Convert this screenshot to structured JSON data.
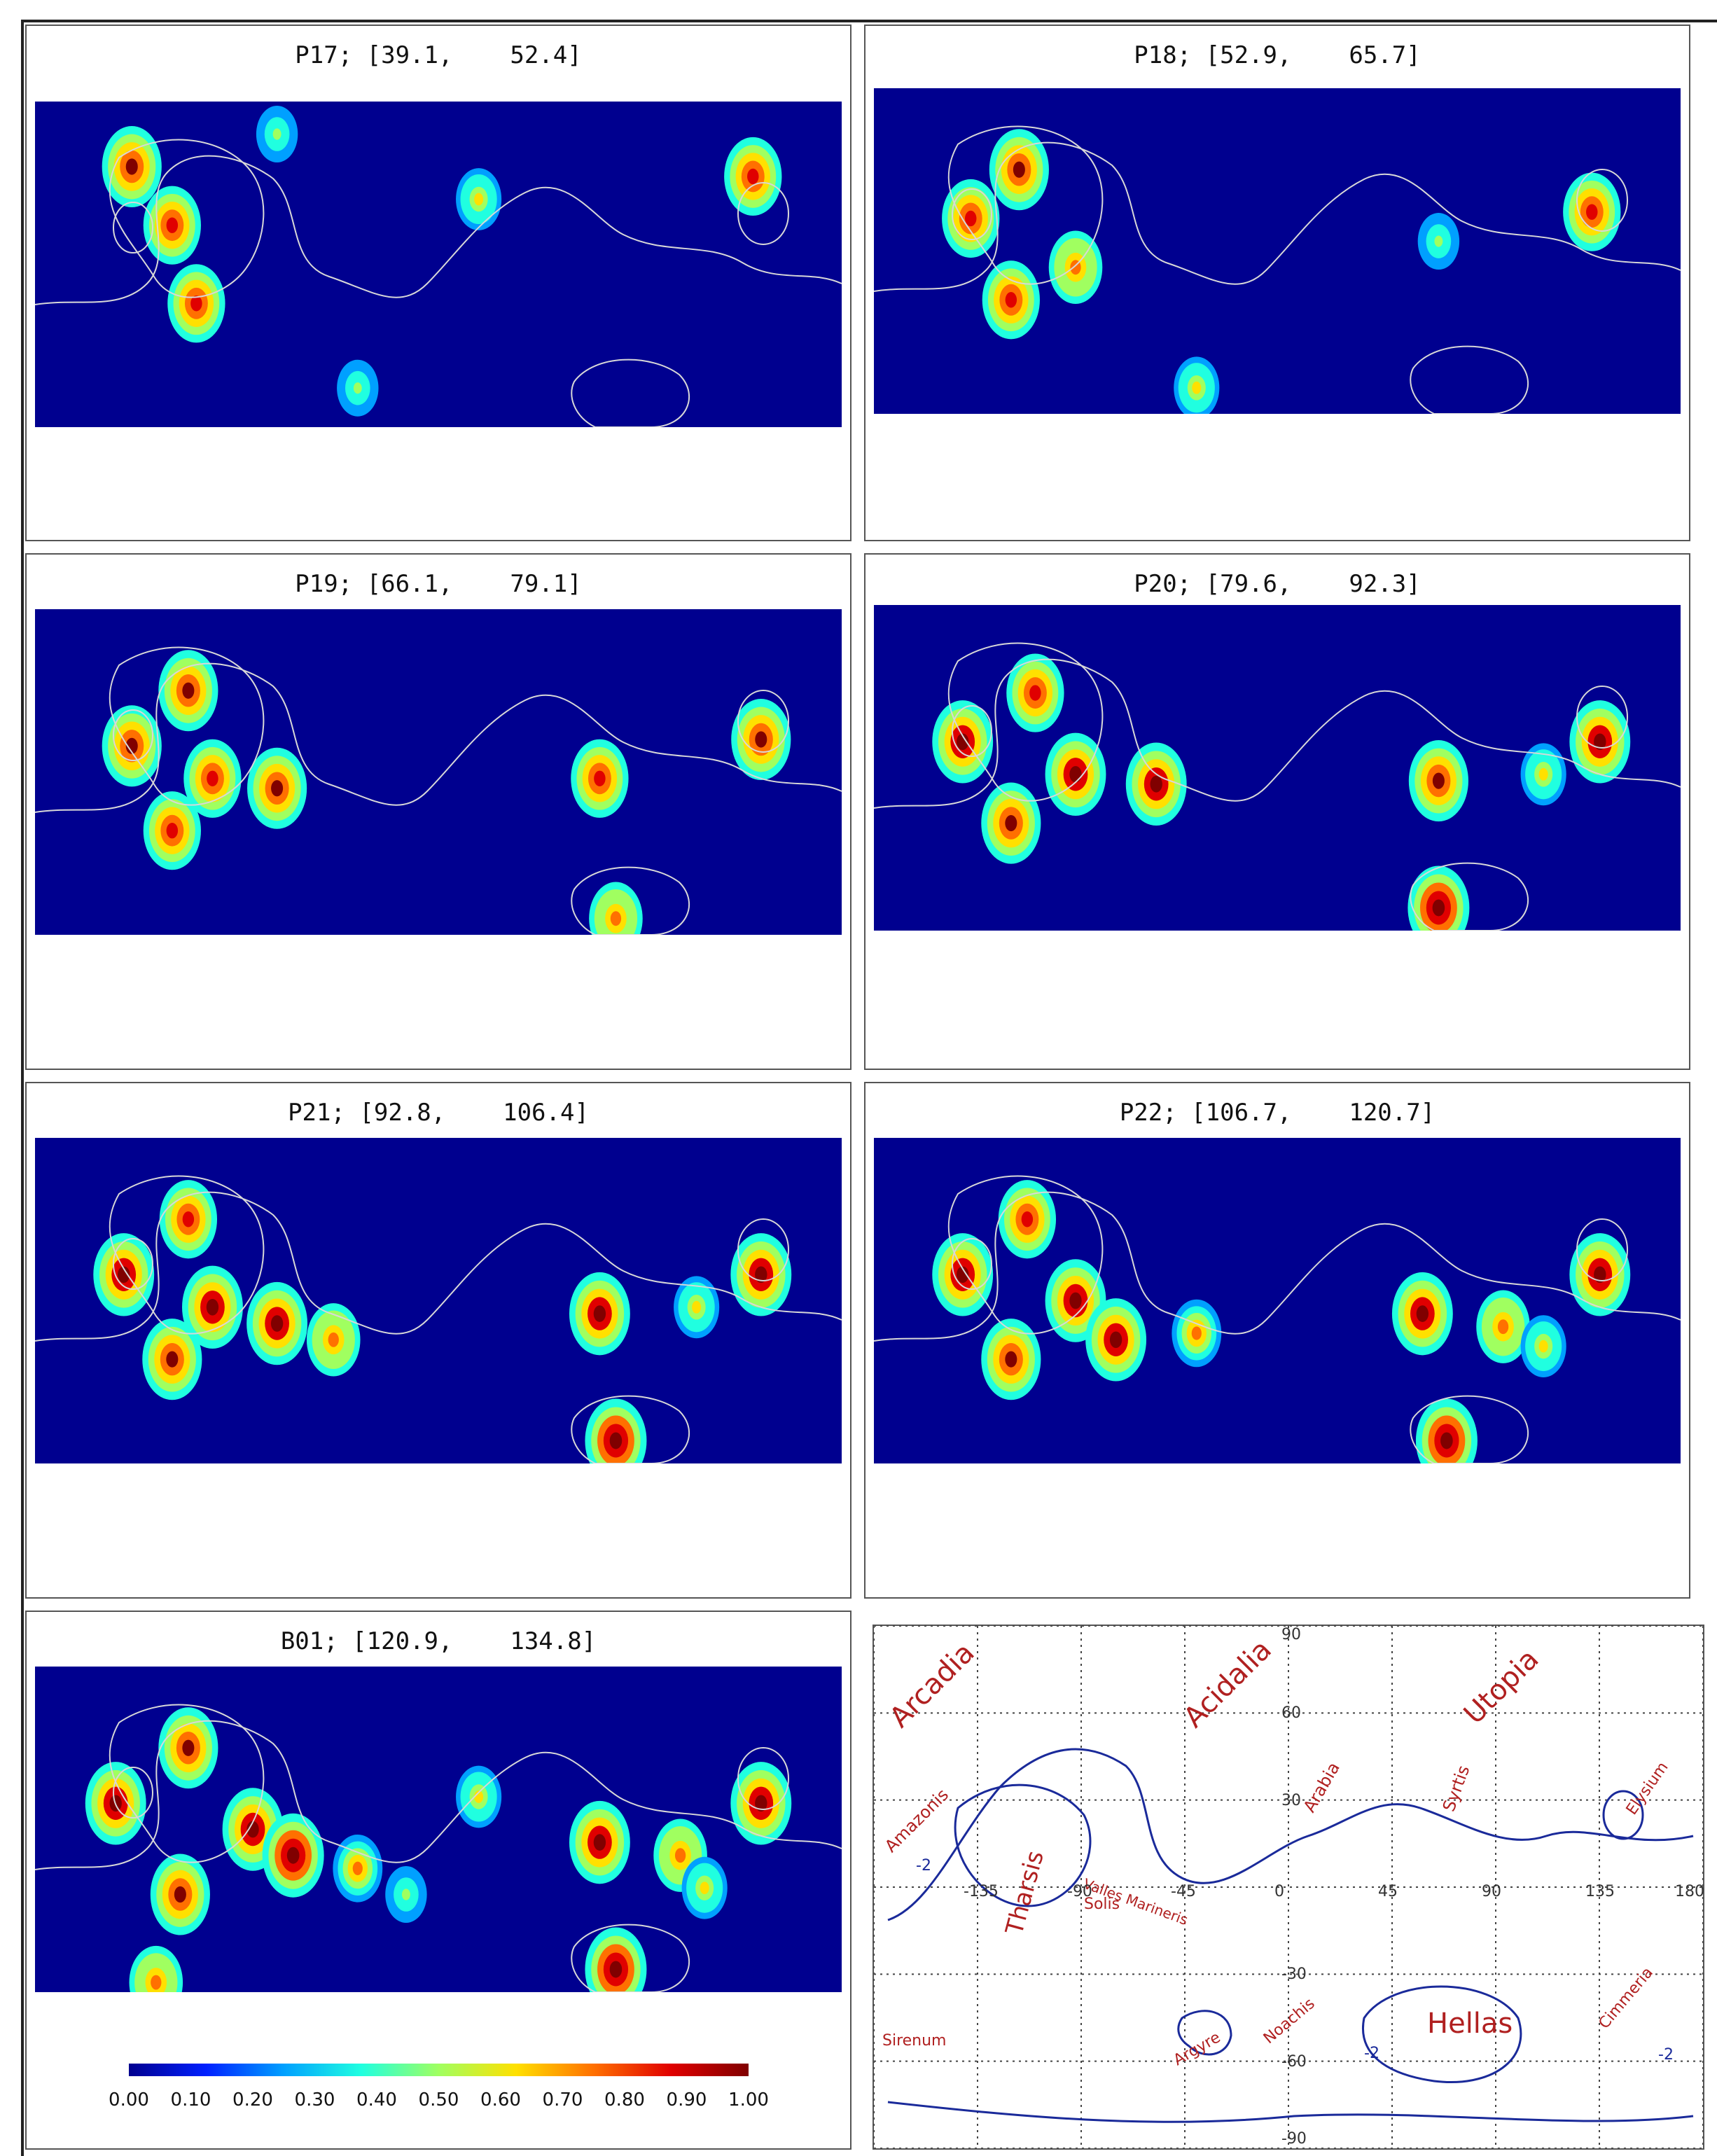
{
  "chart_data": {
    "type": "heatmap",
    "panels": [
      {
        "id": "P17",
        "title": "P17; [39.1,    52.4]",
        "hotspots": [
          [
            0.17,
            0.38,
            0.9
          ],
          [
            0.12,
            0.2,
            0.95
          ],
          [
            0.89,
            0.23,
            0.9
          ],
          [
            0.55,
            0.3,
            0.6
          ],
          [
            0.2,
            0.62,
            0.9
          ],
          [
            0.4,
            0.88,
            0.5
          ],
          [
            0.3,
            0.1,
            0.5
          ]
        ]
      },
      {
        "id": "P18",
        "title": "P18; [52.9,    65.7]",
        "hotspots": [
          [
            0.18,
            0.25,
            0.95
          ],
          [
            0.12,
            0.4,
            0.9
          ],
          [
            0.89,
            0.38,
            0.9
          ],
          [
            0.25,
            0.55,
            0.8
          ],
          [
            0.17,
            0.65,
            0.9
          ],
          [
            0.4,
            0.92,
            0.6
          ],
          [
            0.7,
            0.47,
            0.5
          ]
        ]
      },
      {
        "id": "P19",
        "title": "P19; [66.1,    79.1]",
        "hotspots": [
          [
            0.19,
            0.25,
            0.95
          ],
          [
            0.12,
            0.42,
            0.95
          ],
          [
            0.9,
            0.4,
            0.95
          ],
          [
            0.3,
            0.55,
            0.95
          ],
          [
            0.22,
            0.52,
            0.9
          ],
          [
            0.17,
            0.68,
            0.9
          ],
          [
            0.7,
            0.52,
            0.9
          ],
          [
            0.72,
            0.95,
            0.8
          ]
        ]
      },
      {
        "id": "P20",
        "title": "P20; [79.6,    92.3]",
        "hotspots": [
          [
            0.2,
            0.27,
            0.9
          ],
          [
            0.11,
            0.42,
            0.98
          ],
          [
            0.9,
            0.42,
            0.98
          ],
          [
            0.25,
            0.52,
            0.98
          ],
          [
            0.35,
            0.55,
            0.98
          ],
          [
            0.17,
            0.67,
            0.95
          ],
          [
            0.7,
            0.54,
            0.95
          ],
          [
            0.7,
            0.93,
            1.0
          ],
          [
            0.83,
            0.52,
            0.6
          ]
        ]
      },
      {
        "id": "P21",
        "title": "P21; [92.8,    106.4]",
        "hotspots": [
          [
            0.19,
            0.25,
            0.9
          ],
          [
            0.11,
            0.42,
            0.98
          ],
          [
            0.9,
            0.42,
            0.98
          ],
          [
            0.22,
            0.52,
            0.98
          ],
          [
            0.3,
            0.57,
            0.98
          ],
          [
            0.17,
            0.68,
            0.95
          ],
          [
            0.7,
            0.54,
            0.98
          ],
          [
            0.72,
            0.93,
            1.0
          ],
          [
            0.82,
            0.52,
            0.6
          ],
          [
            0.37,
            0.62,
            0.8
          ]
        ]
      },
      {
        "id": "P22",
        "title": "P22; [106.7,    120.7]",
        "hotspots": [
          [
            0.19,
            0.25,
            0.9
          ],
          [
            0.11,
            0.42,
            0.98
          ],
          [
            0.9,
            0.42,
            0.98
          ],
          [
            0.25,
            0.5,
            0.98
          ],
          [
            0.3,
            0.62,
            0.98
          ],
          [
            0.17,
            0.68,
            0.95
          ],
          [
            0.68,
            0.54,
            0.98
          ],
          [
            0.71,
            0.93,
            1.0
          ],
          [
            0.78,
            0.58,
            0.8
          ],
          [
            0.83,
            0.64,
            0.6
          ],
          [
            0.4,
            0.6,
            0.7
          ]
        ]
      },
      {
        "id": "B01",
        "title": "B01; [120.9,    134.8]",
        "hotspots": [
          [
            0.19,
            0.25,
            0.95
          ],
          [
            0.1,
            0.42,
            0.98
          ],
          [
            0.9,
            0.42,
            0.98
          ],
          [
            0.27,
            0.5,
            0.98
          ],
          [
            0.32,
            0.58,
            1.0
          ],
          [
            0.18,
            0.7,
            0.95
          ],
          [
            0.7,
            0.54,
            0.98
          ],
          [
            0.72,
            0.93,
            1.0
          ],
          [
            0.8,
            0.58,
            0.8
          ],
          [
            0.83,
            0.68,
            0.6
          ],
          [
            0.4,
            0.62,
            0.7
          ],
          [
            0.15,
            0.97,
            0.8
          ],
          [
            0.55,
            0.4,
            0.6
          ],
          [
            0.46,
            0.7,
            0.5
          ]
        ]
      }
    ],
    "colorbar": {
      "ticks": [
        "0.00",
        "0.10",
        "0.20",
        "0.30",
        "0.40",
        "0.50",
        "0.60",
        "0.70",
        "0.80",
        "0.90",
        "1.00"
      ],
      "colors": [
        "#00008f",
        "#0020ff",
        "#00a0ff",
        "#20ffe0",
        "#a0ff60",
        "#ffe000",
        "#ff7000",
        "#e00000",
        "#800000"
      ]
    },
    "reference_map": {
      "grid_lon_ticks": [
        "-135",
        "-90",
        "-45",
        "0",
        "45",
        "90",
        "135",
        "180"
      ],
      "grid_lat_ticks": [
        "90",
        "60",
        "30",
        "-30",
        "-60",
        "-90"
      ],
      "contour_label": "-2",
      "region_labels": [
        "Arcadia",
        "Acidalia",
        "Utopia",
        "Amazonis",
        "Tharsis",
        "Arabia",
        "Syrtis",
        "Elysium",
        "Valles Marineris",
        "Solis",
        "Hellas",
        "Sirenum",
        "Argyre",
        "Noachis",
        "Cimmeria"
      ]
    }
  }
}
